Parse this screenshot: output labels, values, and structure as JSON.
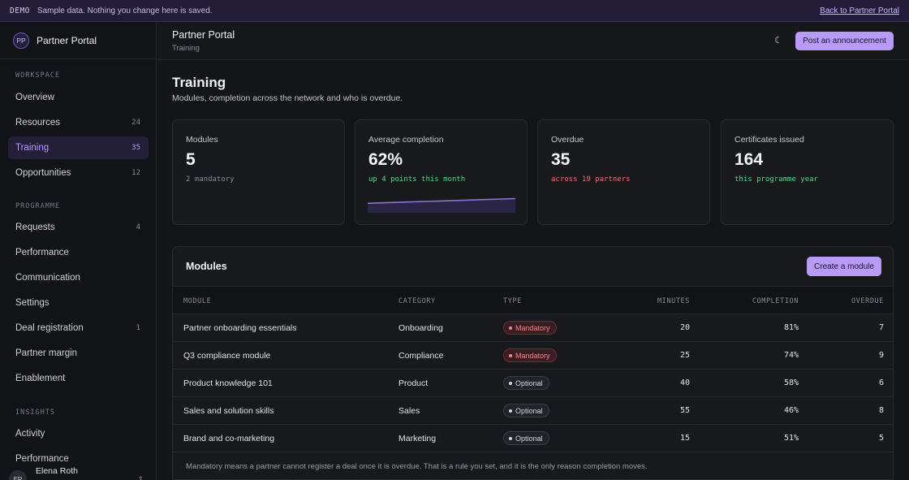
{
  "banner": {
    "tag": "DEMO",
    "message": "Sample data. Nothing you change here is saved.",
    "back_link": "Back to Partner Portal"
  },
  "sidebar": {
    "avatar_initials": "PP",
    "brand": "Partner Portal",
    "sections": [
      {
        "label": "WORKSPACE"
      },
      {
        "label": "PROGRAMME"
      },
      {
        "label": "INSIGHTS"
      }
    ],
    "items": [
      {
        "label": "Overview",
        "count": ""
      },
      {
        "label": "Resources",
        "count": "24"
      },
      {
        "label": "Training",
        "count": "35",
        "active": true
      },
      {
        "label": "Opportunities",
        "count": "12"
      },
      {
        "label": "Requests",
        "count": "4"
      },
      {
        "label": "Performance",
        "count": ""
      },
      {
        "label": "Communication",
        "count": ""
      },
      {
        "label": "Settings",
        "count": ""
      },
      {
        "label": "Deal registration",
        "count": "1"
      },
      {
        "label": "Partner margin",
        "count": ""
      },
      {
        "label": "Enablement",
        "count": ""
      },
      {
        "label": "Activity",
        "count": ""
      },
      {
        "label": "Performance",
        "count": ""
      }
    ],
    "user": {
      "initials": "ER",
      "name": "Elena Roth",
      "menu_icon": "chevron-updown-icon"
    }
  },
  "topbar": {
    "title": "Partner Portal",
    "subtitle": "Training",
    "theme_icon": "moon-icon",
    "post_button": "Post an announcement"
  },
  "page": {
    "title": "Training",
    "subtitle": "Modules, completion across the network and who is overdue."
  },
  "stats": [
    {
      "label": "Modules",
      "value": "5",
      "sub": "2 mandatory",
      "tone": "neutral"
    },
    {
      "label": "Average completion",
      "value": "62%",
      "sub": "up 4 points this month",
      "tone": "positive"
    },
    {
      "label": "Overdue",
      "value": "35",
      "sub": "across 19 partners",
      "tone": "negative"
    },
    {
      "label": "Certificates issued",
      "value": "164",
      "sub": "this programme year",
      "tone": "positive"
    }
  ],
  "sparkline": {
    "values": [
      58,
      59,
      60,
      61,
      62
    ]
  },
  "modules": {
    "title": "Modules",
    "create_button": "Create a module",
    "columns": [
      "MODULE",
      "CATEGORY",
      "TYPE",
      "MINUTES",
      "COMPLETION",
      "OVERDUE"
    ],
    "rows": [
      {
        "module": "Partner onboarding essentials",
        "category": "Onboarding",
        "type": "Mandatory",
        "minutes": "20",
        "completion": "81%",
        "overdue": "7"
      },
      {
        "module": "Q3 compliance module",
        "category": "Compliance",
        "type": "Mandatory",
        "minutes": "25",
        "completion": "74%",
        "overdue": "9"
      },
      {
        "module": "Product knowledge 101",
        "category": "Product",
        "type": "Optional",
        "minutes": "40",
        "completion": "58%",
        "overdue": "6"
      },
      {
        "module": "Sales and solution skills",
        "category": "Sales",
        "type": "Optional",
        "minutes": "55",
        "completion": "46%",
        "overdue": "8"
      },
      {
        "module": "Brand and co-marketing",
        "category": "Marketing",
        "type": "Optional",
        "minutes": "15",
        "completion": "51%",
        "overdue": "5"
      }
    ],
    "footnote": "Mandatory means a partner cannot register a deal once it is overdue. That is a rule you set, and it is the only reason completion moves."
  },
  "colors": {
    "accent": "#b89bf7",
    "positive": "#5bd08d",
    "negative": "#ef6b6b",
    "mandatory": "#f08a8a"
  }
}
